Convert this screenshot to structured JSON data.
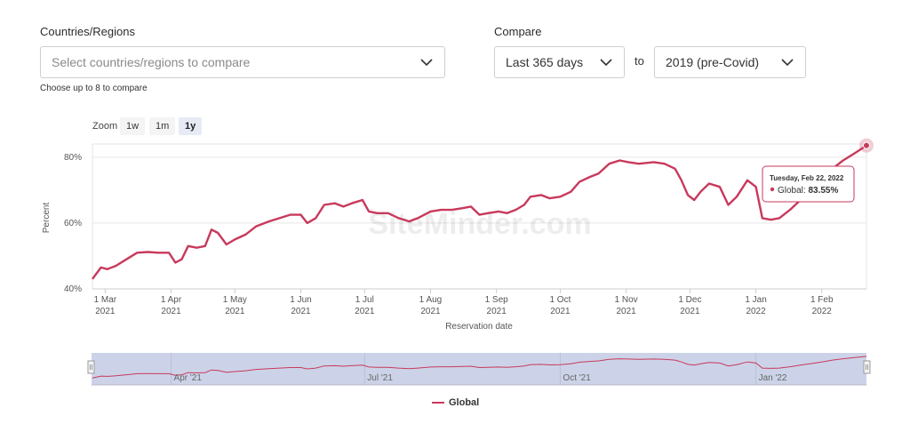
{
  "filters": {
    "regions_label": "Countries/Regions",
    "regions_placeholder": "Select countries/regions to compare",
    "regions_hint": "Choose up to 8 to compare",
    "compare_label": "Compare",
    "period_value": "Last 365 days",
    "to_label": "to",
    "baseline_value": "2019 (pre-Covid)"
  },
  "zoom": {
    "label": "Zoom",
    "buttons": [
      "1w",
      "1m",
      "1y"
    ],
    "active": "1y"
  },
  "watermark": "SiteMinder.com",
  "tooltip": {
    "date": "Tuesday, Feb 22, 2022",
    "series": "Global",
    "value": "83.55%"
  },
  "navigator_labels": [
    "Apr '21",
    "Jul '21",
    "Oct '21",
    "Jan '22"
  ],
  "colors": {
    "series": "#c8395c",
    "navigator_bg": "#ccd3e8"
  },
  "chart_data": {
    "type": "line",
    "xlabel": "Reservation date",
    "ylabel": "Percent",
    "y_ticks": [
      {
        "value": 40,
        "label": "40%"
      },
      {
        "value": 60,
        "label": "60%"
      },
      {
        "value": 80,
        "label": "80%"
      }
    ],
    "ylim": [
      40,
      84
    ],
    "xlim": [
      "2021-02-23",
      "2022-02-22"
    ],
    "x_ticks": [
      {
        "date": "2021-03-01",
        "line1": "1 Mar",
        "line2": "2021"
      },
      {
        "date": "2021-04-01",
        "line1": "1 Apr",
        "line2": "2021"
      },
      {
        "date": "2021-05-01",
        "line1": "1 May",
        "line2": "2021"
      },
      {
        "date": "2021-06-01",
        "line1": "1 Jun",
        "line2": "2021"
      },
      {
        "date": "2021-07-01",
        "line1": "1 Jul",
        "line2": "2021"
      },
      {
        "date": "2021-08-01",
        "line1": "1 Aug",
        "line2": "2021"
      },
      {
        "date": "2021-09-01",
        "line1": "1 Sep",
        "line2": "2021"
      },
      {
        "date": "2021-10-01",
        "line1": "1 Oct",
        "line2": "2021"
      },
      {
        "date": "2021-11-01",
        "line1": "1 Nov",
        "line2": "2021"
      },
      {
        "date": "2021-12-01",
        "line1": "1 Dec",
        "line2": "2021"
      },
      {
        "date": "2022-01-01",
        "line1": "1 Jan",
        "line2": "2022"
      },
      {
        "date": "2022-02-01",
        "line1": "1 Feb",
        "line2": "2022"
      }
    ],
    "legend": "bottom-center",
    "series": [
      {
        "name": "Global",
        "points": [
          [
            "2021-02-23",
            43.0
          ],
          [
            "2021-02-27",
            46.5
          ],
          [
            "2021-03-02",
            46.0
          ],
          [
            "2021-03-06",
            47.0
          ],
          [
            "2021-03-11",
            49.0
          ],
          [
            "2021-03-16",
            51.0
          ],
          [
            "2021-03-21",
            51.2
          ],
          [
            "2021-03-26",
            51.0
          ],
          [
            "2021-03-31",
            51.0
          ],
          [
            "2021-04-03",
            48.0
          ],
          [
            "2021-04-06",
            49.0
          ],
          [
            "2021-04-09",
            53.0
          ],
          [
            "2021-04-13",
            52.5
          ],
          [
            "2021-04-17",
            53.0
          ],
          [
            "2021-04-20",
            58.0
          ],
          [
            "2021-04-23",
            57.0
          ],
          [
            "2021-04-27",
            53.5
          ],
          [
            "2021-05-01",
            55.0
          ],
          [
            "2021-05-06",
            56.5
          ],
          [
            "2021-05-11",
            59.0
          ],
          [
            "2021-05-17",
            60.5
          ],
          [
            "2021-05-22",
            61.5
          ],
          [
            "2021-05-27",
            62.5
          ],
          [
            "2021-06-01",
            62.5
          ],
          [
            "2021-06-04",
            60.0
          ],
          [
            "2021-06-08",
            61.5
          ],
          [
            "2021-06-12",
            65.5
          ],
          [
            "2021-06-17",
            66.0
          ],
          [
            "2021-06-21",
            65.0
          ],
          [
            "2021-06-25",
            66.0
          ],
          [
            "2021-06-30",
            67.0
          ],
          [
            "2021-07-03",
            63.5
          ],
          [
            "2021-07-07",
            63.0
          ],
          [
            "2021-07-12",
            63.0
          ],
          [
            "2021-07-17",
            61.5
          ],
          [
            "2021-07-22",
            60.5
          ],
          [
            "2021-07-26",
            61.5
          ],
          [
            "2021-08-01",
            63.5
          ],
          [
            "2021-08-06",
            64.0
          ],
          [
            "2021-08-11",
            64.0
          ],
          [
            "2021-08-16",
            64.5
          ],
          [
            "2021-08-20",
            65.0
          ],
          [
            "2021-08-24",
            62.5
          ],
          [
            "2021-08-28",
            63.0
          ],
          [
            "2021-09-02",
            63.5
          ],
          [
            "2021-09-06",
            63.0
          ],
          [
            "2021-09-10",
            64.0
          ],
          [
            "2021-09-14",
            65.5
          ],
          [
            "2021-09-17",
            68.0
          ],
          [
            "2021-09-22",
            68.5
          ],
          [
            "2021-09-26",
            67.5
          ],
          [
            "2021-10-01",
            68.0
          ],
          [
            "2021-10-06",
            69.5
          ],
          [
            "2021-10-10",
            72.5
          ],
          [
            "2021-10-15",
            74.0
          ],
          [
            "2021-10-19",
            75.0
          ],
          [
            "2021-10-24",
            78.0
          ],
          [
            "2021-10-29",
            79.0
          ],
          [
            "2021-11-02",
            78.5
          ],
          [
            "2021-11-07",
            78.0
          ],
          [
            "2021-11-14",
            78.5
          ],
          [
            "2021-11-19",
            78.0
          ],
          [
            "2021-11-24",
            76.5
          ],
          [
            "2021-11-27",
            73.0
          ],
          [
            "2021-11-30",
            68.5
          ],
          [
            "2021-12-03",
            67.0
          ],
          [
            "2021-12-06",
            69.5
          ],
          [
            "2021-12-10",
            72.0
          ],
          [
            "2021-12-15",
            71.0
          ],
          [
            "2021-12-19",
            65.5
          ],
          [
            "2021-12-23",
            68.0
          ],
          [
            "2021-12-28",
            73.0
          ],
          [
            "2022-01-01",
            71.0
          ],
          [
            "2022-01-04",
            61.5
          ],
          [
            "2022-01-08",
            61.0
          ],
          [
            "2022-01-12",
            61.5
          ],
          [
            "2022-01-17",
            64.0
          ],
          [
            "2022-01-22",
            67.0
          ],
          [
            "2022-01-27",
            70.0
          ],
          [
            "2022-02-01",
            73.0
          ],
          [
            "2022-02-06",
            76.5
          ],
          [
            "2022-02-11",
            79.0
          ],
          [
            "2022-02-16",
            81.0
          ],
          [
            "2022-02-22",
            83.55
          ]
        ]
      }
    ]
  }
}
